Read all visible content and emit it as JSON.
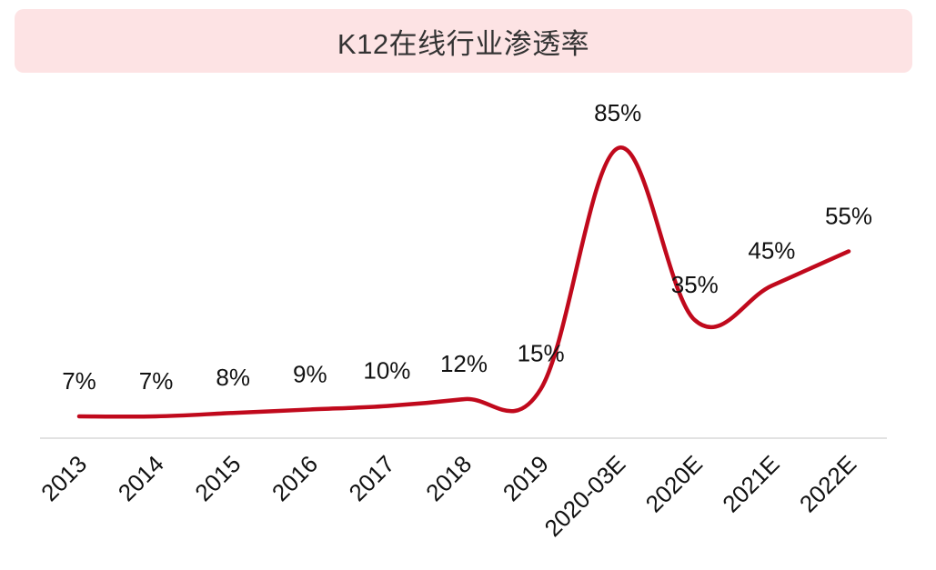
{
  "chart_data": {
    "type": "line",
    "title": "K12在线行业渗透率",
    "categories": [
      "2013",
      "2014",
      "2015",
      "2016",
      "2017",
      "2018",
      "2019",
      "2020-03E",
      "2020E",
      "2021E",
      "2022E"
    ],
    "series": [
      {
        "values": [
          7,
          7,
          8,
          9,
          10,
          12,
          15,
          85,
          35,
          45,
          55
        ],
        "labels": [
          "7%",
          "7%",
          "8%",
          "9%",
          "10%",
          "12%",
          "15%",
          "85%",
          "35%",
          "45%",
          "55%"
        ],
        "color": "#c0091c"
      }
    ],
    "ylim": [
      0,
      90
    ],
    "grid": false,
    "legend": "none",
    "xlabel": "",
    "ylabel": ""
  }
}
